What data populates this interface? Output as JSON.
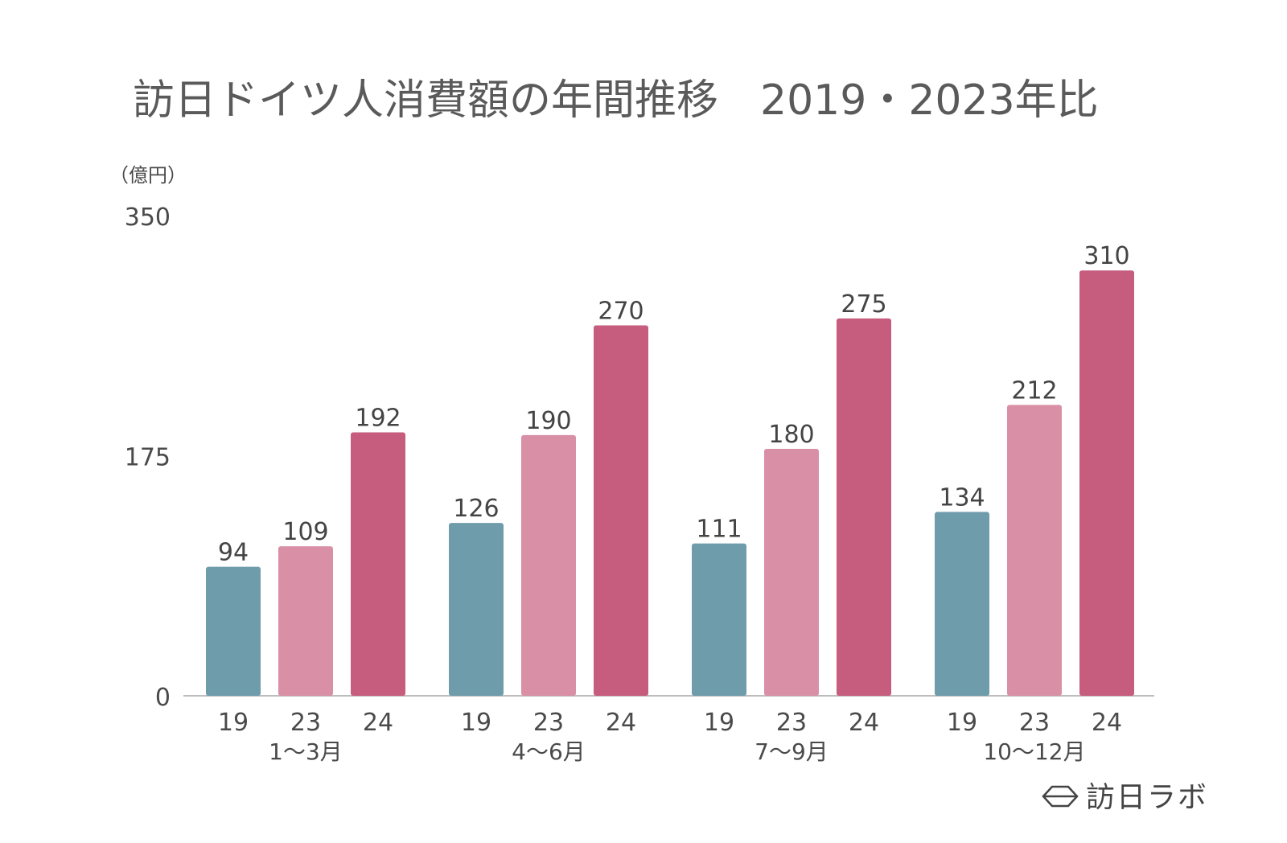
{
  "chart_data": {
    "type": "bar",
    "title": "訪日ドイツ人消費額の年間推移　2019・2023年比",
    "unit_label": "（億円）",
    "ylim": [
      0,
      350
    ],
    "yticks": [
      "0",
      "175",
      "350"
    ],
    "groups": [
      {
        "label": "1〜3月",
        "bars": [
          {
            "label": "19",
            "value": 94
          },
          {
            "label": "23",
            "value": 109
          },
          {
            "label": "24",
            "value": 192
          }
        ]
      },
      {
        "label": "4〜6月",
        "bars": [
          {
            "label": "19",
            "value": 126
          },
          {
            "label": "23",
            "value": 190
          },
          {
            "label": "24",
            "value": 270
          }
        ]
      },
      {
        "label": "7〜9月",
        "bars": [
          {
            "label": "19",
            "value": 111
          },
          {
            "label": "23",
            "value": 180
          },
          {
            "label": "24",
            "value": 275
          }
        ]
      },
      {
        "label": "10〜12月",
        "bars": [
          {
            "label": "19",
            "value": 134
          },
          {
            "label": "23",
            "value": 212
          },
          {
            "label": "24",
            "value": 310
          }
        ]
      }
    ],
    "colors": {
      "19": "#6f9cab",
      "23": "#d98fa6",
      "24": "#c65c7e"
    },
    "grid": false
  },
  "brand": {
    "text": "訪日ラボ"
  }
}
